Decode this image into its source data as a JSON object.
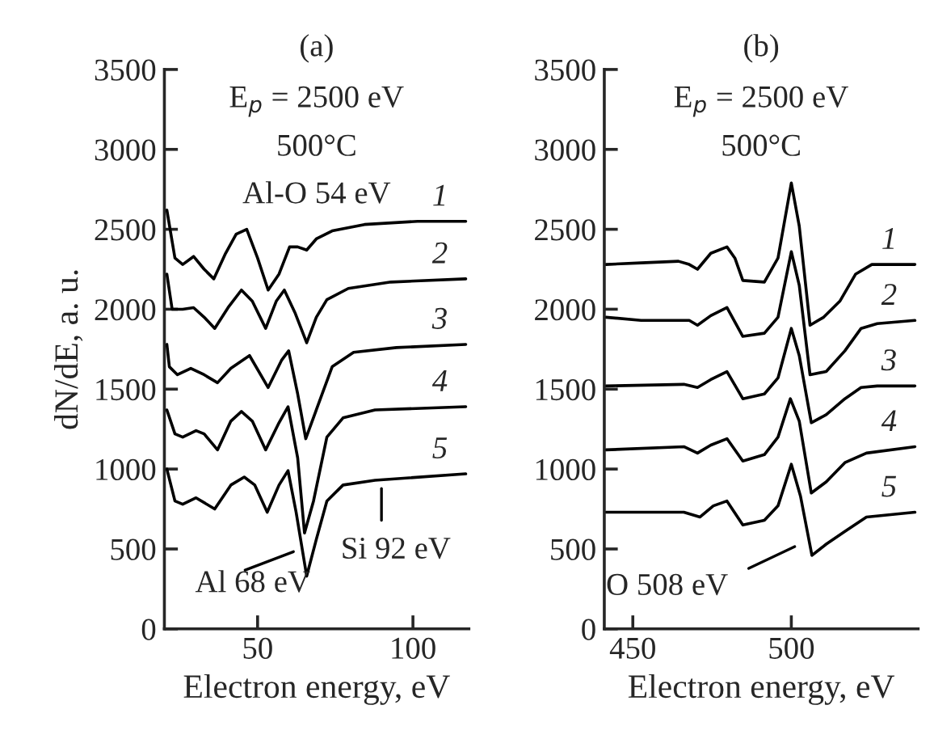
{
  "chart_data": [
    {
      "type": "line",
      "title": "(a)",
      "xlabel": "Electron energy, eV",
      "ylabel": "dN/dE, a. u.",
      "xlim": [
        20,
        118
      ],
      "ylim": [
        0,
        3500
      ],
      "xticks": [
        50,
        100
      ],
      "yticks": [
        0,
        500,
        1000,
        1500,
        2000,
        2500,
        3000,
        3500
      ],
      "grid": false,
      "legend": false,
      "marker": "none",
      "line_style": "solid",
      "annotations": [
        "E$_{p}$ = 2500 eV",
        "500°C",
        "Al-O 54 eV",
        "Al 68 eV",
        "Si 92 eV"
      ],
      "series": [
        {
          "name": "1",
          "color": "#000000",
          "x": [
            20.8,
            23.4,
            25.9,
            29.4,
            32.8,
            35.9,
            39.7,
            43.1,
            46.5,
            50,
            53.4,
            56.9,
            60.3,
            62.9,
            65.8,
            68.9,
            74,
            84.4,
            101.5,
            117
          ],
          "values": [
            2620,
            2320,
            2280,
            2330,
            2250,
            2190,
            2350,
            2470,
            2500,
            2320,
            2120,
            2220,
            2390,
            2390,
            2370,
            2440,
            2490,
            2530,
            2550,
            2550
          ]
        },
        {
          "name": "2",
          "color": "#000000",
          "x": [
            20.8,
            22.5,
            25.9,
            29.4,
            32.8,
            36.2,
            40.5,
            44.8,
            48.3,
            52.6,
            56,
            58.6,
            62,
            65.8,
            68.9,
            72.3,
            79.2,
            92.9,
            117
          ],
          "values": [
            2220,
            2000,
            2000,
            2010,
            1950,
            1880,
            2010,
            2120,
            2050,
            1880,
            2050,
            2120,
            1980,
            1790,
            1950,
            2060,
            2130,
            2170,
            2190
          ]
        },
        {
          "name": "3",
          "color": "#000000",
          "x": [
            20.8,
            21.6,
            24.2,
            28.5,
            32.8,
            37.1,
            41.4,
            47.4,
            53.4,
            57.7,
            60,
            62.9,
            65.5,
            68.9,
            74,
            80.9,
            94.7,
            117
          ],
          "values": [
            1780,
            1640,
            1590,
            1630,
            1590,
            1540,
            1630,
            1710,
            1510,
            1680,
            1740,
            1470,
            1190,
            1370,
            1640,
            1730,
            1760,
            1780
          ]
        },
        {
          "name": "4",
          "color": "#000000",
          "x": [
            20.8,
            23.4,
            25.9,
            30.2,
            32.8,
            37.1,
            41.4,
            44.8,
            48.3,
            52.6,
            56.9,
            59.8,
            62.9,
            65.1,
            68,
            72.3,
            77.5,
            87.8,
            117
          ],
          "values": [
            1370,
            1220,
            1200,
            1240,
            1220,
            1120,
            1300,
            1360,
            1300,
            1120,
            1290,
            1390,
            1070,
            600,
            800,
            1200,
            1320,
            1370,
            1390
          ]
        },
        {
          "name": "5",
          "color": "#000000",
          "x": [
            20.8,
            23.4,
            25.9,
            30.2,
            36.2,
            41.4,
            45.7,
            49.1,
            53.1,
            56.9,
            59.8,
            62.4,
            65.8,
            68.9,
            72.3,
            77.5,
            87.8,
            117
          ],
          "values": [
            1000,
            800,
            780,
            820,
            750,
            900,
            950,
            900,
            730,
            900,
            990,
            730,
            330,
            560,
            800,
            900,
            930,
            970
          ]
        }
      ]
    },
    {
      "type": "line",
      "title": "(b)",
      "xlabel": "Electron energy, eV",
      "xlim": [
        441,
        540
      ],
      "ylim": [
        0,
        3500
      ],
      "xticks": [
        450,
        500
      ],
      "yticks": [
        0,
        500,
        1000,
        1500,
        2000,
        2500,
        3000,
        3500
      ],
      "grid": false,
      "legend": false,
      "marker": "none",
      "line_style": "solid",
      "annotations": [
        "E$_{p}$ = 2500 eV",
        "500°C",
        "O 508 eV"
      ],
      "series": [
        {
          "name": "1",
          "color": "#000000",
          "x": [
            441.5,
            452.6,
            464.4,
            467.8,
            470.4,
            474.6,
            479.7,
            482.2,
            484.7,
            491.5,
            495.8,
            500,
            502.5,
            505.9,
            510.2,
            515.3,
            520.3,
            525.4,
            539
          ],
          "values": [
            2280,
            2290,
            2300,
            2280,
            2250,
            2350,
            2390,
            2320,
            2180,
            2170,
            2320,
            2790,
            2520,
            1900,
            1950,
            2050,
            2220,
            2280,
            2280
          ]
        },
        {
          "name": "2",
          "color": "#000000",
          "x": [
            441.5,
            452.6,
            467.8,
            470.4,
            474.6,
            479.7,
            484.7,
            491.5,
            495.8,
            500,
            502.5,
            505.9,
            511,
            516.9,
            522,
            527.1,
            539
          ],
          "values": [
            1950,
            1930,
            1930,
            1900,
            1960,
            2010,
            1830,
            1850,
            1950,
            2360,
            2150,
            1590,
            1610,
            1740,
            1880,
            1910,
            1930
          ]
        },
        {
          "name": "3",
          "color": "#000000",
          "x": [
            441.5,
            466.1,
            470.4,
            474.6,
            479.7,
            484.7,
            491.5,
            495.8,
            500,
            502.5,
            506.3,
            511,
            516.9,
            522,
            527.1,
            539
          ],
          "values": [
            1520,
            1530,
            1510,
            1560,
            1610,
            1440,
            1470,
            1570,
            1880,
            1710,
            1290,
            1340,
            1440,
            1510,
            1520,
            1520
          ]
        },
        {
          "name": "4",
          "color": "#000000",
          "x": [
            441.5,
            466.1,
            470.4,
            474.6,
            479.7,
            484.7,
            491.5,
            495.8,
            499.7,
            502.5,
            506.3,
            511,
            516.9,
            523.7,
            539
          ],
          "values": [
            1120,
            1140,
            1100,
            1150,
            1190,
            1050,
            1090,
            1200,
            1440,
            1300,
            850,
            920,
            1040,
            1100,
            1140
          ]
        },
        {
          "name": "5",
          "color": "#000000",
          "x": [
            441.5,
            466.1,
            471.2,
            475.4,
            479.7,
            484.7,
            491.5,
            495.8,
            500,
            502.9,
            506.5,
            511,
            516.9,
            523.7,
            539
          ],
          "values": [
            730,
            730,
            700,
            770,
            800,
            650,
            680,
            770,
            1030,
            830,
            460,
            530,
            610,
            700,
            730
          ]
        }
      ]
    }
  ]
}
